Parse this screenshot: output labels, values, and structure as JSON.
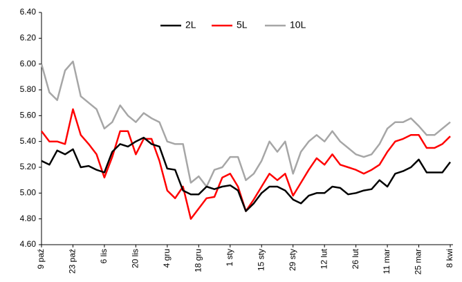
{
  "chart_data": {
    "type": "line",
    "categories": [
      "9 paź",
      null,
      null,
      null,
      "23 paź",
      null,
      null,
      null,
      "6 lis",
      null,
      null,
      null,
      "20 lis",
      null,
      null,
      null,
      "4 gru",
      null,
      null,
      null,
      "18 gru",
      null,
      null,
      null,
      "1 sty",
      null,
      null,
      null,
      "15 sty",
      null,
      null,
      null,
      "29 sty",
      null,
      null,
      null,
      "12 lut",
      null,
      null,
      null,
      "26 lut",
      null,
      null,
      null,
      "11 mar",
      null,
      null,
      null,
      "25 mar",
      null,
      null,
      null,
      "8 kwi"
    ],
    "series": [
      {
        "name": "2L",
        "color": "#000000",
        "values": [
          5.25,
          5.22,
          5.33,
          5.3,
          5.34,
          5.2,
          5.21,
          5.18,
          5.16,
          5.32,
          5.38,
          5.36,
          5.4,
          5.43,
          5.38,
          5.36,
          5.19,
          5.18,
          5.02,
          4.99,
          4.99,
          5.05,
          5.03,
          5.05,
          5.06,
          5.02,
          4.86,
          4.92,
          5.0,
          5.05,
          5.05,
          5.02,
          4.95,
          4.92,
          4.98,
          5.0,
          5.0,
          5.05,
          5.04,
          4.99,
          5.0,
          5.02,
          5.03,
          5.1,
          5.05,
          5.15,
          5.17,
          5.2,
          5.26,
          5.16,
          5.16,
          5.16,
          5.24
        ]
      },
      {
        "name": "5L",
        "color": "#ff0000",
        "values": [
          5.48,
          5.4,
          5.4,
          5.38,
          5.65,
          5.45,
          5.38,
          5.3,
          5.12,
          5.28,
          5.48,
          5.48,
          5.3,
          5.42,
          5.42,
          5.25,
          5.02,
          4.96,
          5.05,
          4.8,
          4.88,
          4.96,
          4.97,
          5.12,
          5.15,
          5.05,
          4.86,
          4.95,
          5.05,
          5.15,
          5.1,
          5.15,
          4.98,
          5.08,
          5.18,
          5.27,
          5.22,
          5.3,
          5.22,
          5.2,
          5.18,
          5.15,
          5.18,
          5.22,
          5.32,
          5.4,
          5.42,
          5.45,
          5.45,
          5.35,
          5.35,
          5.38,
          5.44
        ]
      },
      {
        "name": "10L",
        "color": "#a6a6a6",
        "values": [
          6.0,
          5.78,
          5.72,
          5.95,
          6.02,
          5.75,
          5.7,
          5.65,
          5.5,
          5.55,
          5.68,
          5.6,
          5.55,
          5.62,
          5.58,
          5.55,
          5.4,
          5.38,
          5.38,
          5.08,
          5.13,
          5.05,
          5.18,
          5.2,
          5.28,
          5.28,
          5.1,
          5.15,
          5.25,
          5.4,
          5.32,
          5.4,
          5.15,
          5.32,
          5.4,
          5.45,
          5.4,
          5.48,
          5.4,
          5.35,
          5.3,
          5.28,
          5.3,
          5.38,
          5.5,
          5.55,
          5.55,
          5.58,
          5.52,
          5.45,
          5.45,
          5.5,
          5.55
        ]
      }
    ],
    "ylim": [
      4.6,
      6.4
    ],
    "yticks": [
      {
        "value": 4.6,
        "label": "4.60"
      },
      {
        "value": 4.8,
        "label": "4.80"
      },
      {
        "value": 5.0,
        "label": "5.00"
      },
      {
        "value": 5.2,
        "label": "5.20"
      },
      {
        "value": 5.4,
        "label": "5.40"
      },
      {
        "value": 5.6,
        "label": "5.60"
      },
      {
        "value": 5.8,
        "label": "5.80"
      },
      {
        "value": 6.0,
        "label": "6.00"
      },
      {
        "value": 6.2,
        "label": "6.20"
      },
      {
        "value": 6.4,
        "label": "6.40"
      }
    ],
    "legend": "top",
    "grid": false
  }
}
